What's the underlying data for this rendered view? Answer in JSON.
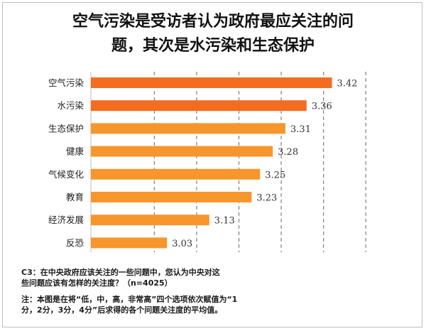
{
  "header": {
    "title_line1": "空气污染是受访者认为政府最应关注的问",
    "title_line2": "题，其次是水污染和生态保护"
  },
  "chart_data": {
    "type": "bar",
    "orientation": "horizontal",
    "categories": [
      "空气污染",
      "水污染",
      "生态保护",
      "健康",
      "气候变化",
      "教育",
      "经济发展",
      "反恐"
    ],
    "values": [
      3.42,
      3.36,
      3.31,
      3.28,
      3.25,
      3.23,
      3.13,
      3.03
    ],
    "value_labels": [
      "3.42",
      "3.36",
      "3.31",
      "3.28",
      "3.25",
      "3.23",
      "3.13",
      "3.03"
    ],
    "xlim": [
      2.85,
      3.55
    ],
    "grid": "vertical dashed",
    "colors": {
      "top": "#F36C21",
      "rest": "#F7962C",
      "grid": "#7f7f7f",
      "axis": "#bfbfbf"
    },
    "highlight_top_n": 2
  },
  "notes": {
    "question_line1": "C3：在中央政府应该关注的一些问题中，您认为中央对这",
    "question_line2": "些问题应该有怎样的关注度？（n=4025）",
    "note_line1": "注：本图是在将“低，中，高，非常高”四个选项依次赋值为“1",
    "note_line2": "分，2分，3分，4分”后求得的各个问题关注度的平均值。"
  }
}
